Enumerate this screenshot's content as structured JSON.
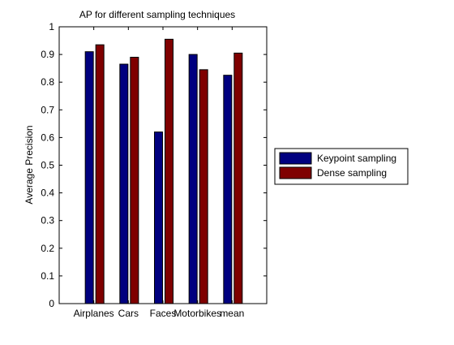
{
  "chart_data": {
    "type": "bar",
    "title": "AP for different sampling techniques",
    "xlabel": "",
    "ylabel": "Average Precision",
    "ylim": [
      0,
      1
    ],
    "yticks": [
      "0",
      "0.1",
      "0.2",
      "0.3",
      "0.4",
      "0.5",
      "0.6",
      "0.7",
      "0.8",
      "0.9",
      "1"
    ],
    "categories": [
      "Airplanes",
      "Cars",
      "Faces",
      "Motorbikes",
      "mean"
    ],
    "series": [
      {
        "name": "Keypoint sampling",
        "color": "#00007f",
        "values": [
          0.91,
          0.865,
          0.62,
          0.9,
          0.825
        ]
      },
      {
        "name": "Dense sampling",
        "color": "#7f0000",
        "values": [
          0.935,
          0.89,
          0.955,
          0.845,
          0.905
        ]
      }
    ],
    "grid": false,
    "legend_position": "outside-right"
  }
}
